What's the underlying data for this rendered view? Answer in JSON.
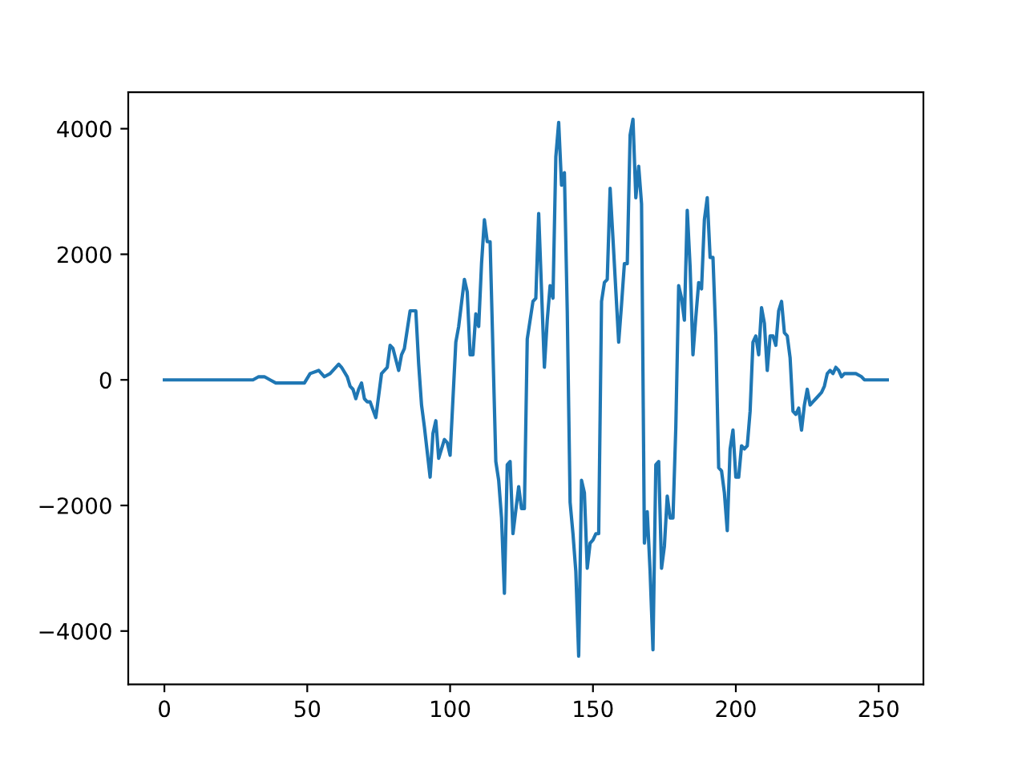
{
  "chart_data": {
    "type": "line",
    "x": [
      0,
      10,
      20,
      28,
      31,
      33,
      35,
      37,
      39,
      40,
      42,
      44,
      46,
      48,
      49,
      51,
      54,
      56,
      58,
      61,
      62,
      64,
      65,
      66,
      67,
      68,
      69,
      70,
      71,
      72,
      74,
      76,
      78,
      79,
      80,
      82,
      83,
      84,
      86,
      87,
      88,
      89,
      90,
      91,
      93,
      94,
      95,
      96,
      98,
      99,
      100,
      102,
      103,
      105,
      106,
      107,
      108,
      109,
      110,
      111,
      112,
      113,
      114,
      116,
      117,
      118,
      119,
      120,
      121,
      122,
      124,
      125,
      126,
      127,
      128,
      129,
      130,
      131,
      133,
      134,
      135,
      136,
      137,
      138,
      139,
      140,
      141,
      142,
      143,
      144,
      145,
      146,
      147,
      148,
      149,
      150,
      151,
      152,
      153,
      154,
      155,
      156,
      157,
      159,
      160,
      161,
      162,
      163,
      164,
      165,
      166,
      167,
      168,
      169,
      170,
      171,
      172,
      173,
      174,
      175,
      176,
      177,
      178,
      179,
      180,
      181,
      182,
      183,
      184,
      185,
      186,
      187,
      188,
      189,
      190,
      191,
      192,
      193,
      194,
      195,
      196,
      197,
      198,
      199,
      200,
      201,
      202,
      203,
      204,
      205,
      206,
      207,
      208,
      209,
      210,
      211,
      212,
      213,
      214,
      215,
      216,
      217,
      218,
      219,
      220,
      221,
      222,
      223,
      224,
      225,
      226,
      227,
      228,
      230,
      231,
      232,
      233,
      234,
      235,
      236,
      237,
      238,
      240,
      241,
      242,
      244,
      245,
      246,
      248,
      251,
      253
    ],
    "series": [
      {
        "color": "#1f77b4",
        "values": [
          0,
          0,
          0,
          0,
          0,
          50,
          50,
          0,
          -50,
          -50,
          -50,
          -50,
          -50,
          -50,
          -50,
          100,
          150,
          50,
          100,
          250,
          200,
          50,
          -100,
          -150,
          -300,
          -150,
          -50,
          -300,
          -350,
          -350,
          -600,
          100,
          200,
          550,
          500,
          150,
          400,
          500,
          1100,
          1100,
          1100,
          250,
          -400,
          -750,
          -1550,
          -850,
          -650,
          -1250,
          -950,
          -1000,
          -1200,
          600,
          850,
          1600,
          1400,
          400,
          400,
          1050,
          850,
          1850,
          2550,
          2200,
          2200,
          -1300,
          -1600,
          -2200,
          -3400,
          -1350,
          -1300,
          -2450,
          -1700,
          -2050,
          -2050,
          650,
          950,
          1250,
          1300,
          2650,
          200,
          950,
          1500,
          1300,
          3550,
          4100,
          3100,
          3300,
          1100,
          -1950,
          -2450,
          -3050,
          -4400,
          -1600,
          -1800,
          -3000,
          -2600,
          -2550,
          -2450,
          -2450,
          1250,
          1550,
          1600,
          3050,
          2250,
          600,
          1200,
          1850,
          1850,
          3900,
          4150,
          2900,
          3400,
          2800,
          -2600,
          -2100,
          -3050,
          -4300,
          -1350,
          -1300,
          -3000,
          -2650,
          -1850,
          -2200,
          -2200,
          -750,
          1500,
          1300,
          950,
          2700,
          1800,
          400,
          1000,
          1550,
          1450,
          2550,
          2900,
          1950,
          1950,
          700,
          -1400,
          -1450,
          -1800,
          -2400,
          -1100,
          -800,
          -1550,
          -1550,
          -1050,
          -1100,
          -1050,
          -500,
          600,
          700,
          400,
          1150,
          900,
          150,
          700,
          700,
          550,
          1100,
          1250,
          750,
          700,
          350,
          -500,
          -550,
          -450,
          -800,
          -400,
          -150,
          -400,
          -350,
          -300,
          -200,
          -100,
          100,
          150,
          100,
          200,
          150,
          50,
          100,
          100,
          100,
          100,
          50,
          0,
          0,
          0,
          0,
          0
        ]
      }
    ],
    "xlim": [
      -12.65,
      265.65
    ],
    "xticks": [
      0,
      50,
      100,
      150,
      200,
      250
    ],
    "ylim": [
      -4850,
      4580
    ],
    "yticks": [
      {
        "value": -4000,
        "label": "−4000"
      },
      {
        "value": -2000,
        "label": "−2000"
      },
      0,
      2000,
      4000
    ],
    "grid": false,
    "marker": "none",
    "line_style": "solid"
  }
}
